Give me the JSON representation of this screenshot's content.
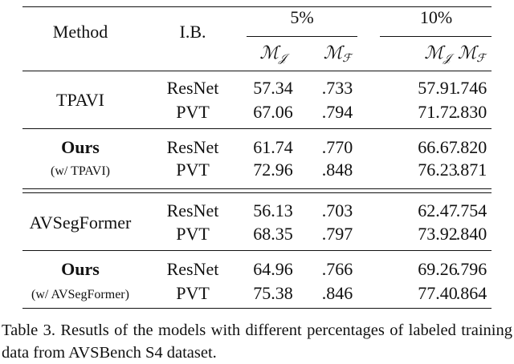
{
  "header": {
    "method": "Method",
    "ib": "I.B.",
    "groups": [
      "5%",
      "10%"
    ],
    "metrics": [
      {
        "symbol": "ℳ",
        "sub": "𝒥"
      },
      {
        "symbol": "ℳ",
        "sub": "ℱ"
      },
      {
        "symbol": "ℳ",
        "sub": "𝒥"
      },
      {
        "symbol": "ℳ",
        "sub": "ℱ"
      }
    ]
  },
  "table": {
    "groups": [
      {
        "method": "TPAVI",
        "bold": false,
        "rows": [
          {
            "ib": "ResNet",
            "values": [
              "57.34",
              ".733",
              "57.91",
              ".746"
            ]
          },
          {
            "ib": "PVT",
            "values": [
              "67.06",
              ".794",
              "71.72",
              ".830"
            ]
          }
        ]
      },
      {
        "method": "Ours",
        "note": "(w/ TPAVI)",
        "bold": true,
        "rows": [
          {
            "ib": "ResNet",
            "values": [
              "61.74",
              ".770",
              "66.67",
              ".820"
            ]
          },
          {
            "ib": "PVT",
            "values": [
              "72.96",
              ".848",
              "76.23",
              ".871"
            ]
          }
        ]
      },
      {
        "method": "AVSegFormer",
        "bold": false,
        "rows": [
          {
            "ib": "ResNet",
            "values": [
              "56.13",
              ".703",
              "62.47",
              ".754"
            ]
          },
          {
            "ib": "PVT",
            "values": [
              "68.35",
              ".797",
              "73.92",
              ".840"
            ]
          }
        ]
      },
      {
        "method": "Ours",
        "note": "(w/ AVSegFormer)",
        "bold": true,
        "rows": [
          {
            "ib": "ResNet",
            "values": [
              "64.96",
              ".766",
              "69.26",
              ".796"
            ]
          },
          {
            "ib": "PVT",
            "values": [
              "75.38",
              ".846",
              "77.40",
              ".864"
            ]
          }
        ]
      }
    ]
  },
  "caption": "Table 3.  Resutls of the models with different percentages of labeled training data from AVSBench S4 dataset."
}
